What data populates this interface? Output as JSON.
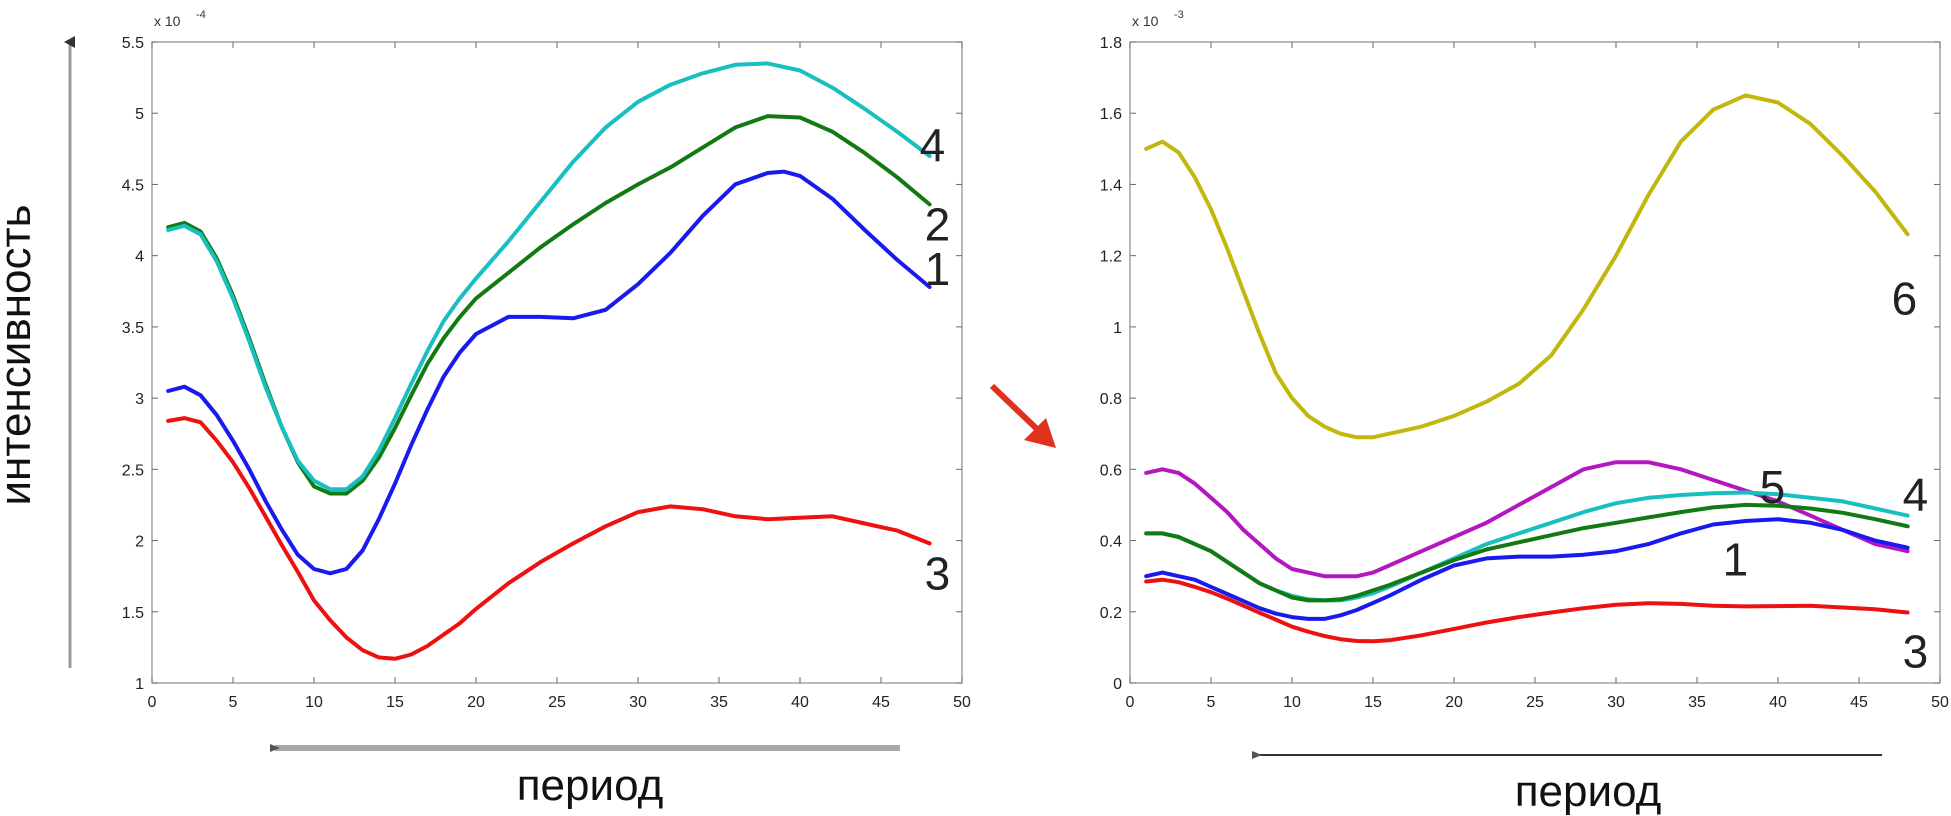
{
  "figure": {
    "ylabel": "интенсивность",
    "xlabel_left": "период",
    "xlabel_right": "период"
  },
  "chart_data": [
    {
      "type": "line",
      "xlim": [
        0,
        50
      ],
      "ylim": [
        1,
        5.5
      ],
      "exponent_label": "x 10",
      "exponent_power": "-4",
      "xticks": [
        "0",
        "5",
        "10",
        "15",
        "20",
        "25",
        "30",
        "35",
        "40",
        "45",
        "50"
      ],
      "yticks": [
        "1",
        "1.5",
        "2",
        "2.5",
        "3",
        "3.5",
        "4",
        "4.5",
        "5",
        "5.5"
      ],
      "grid": false,
      "series": [
        {
          "name": "3",
          "color": "#ee1111",
          "x": [
            1,
            2,
            3,
            4,
            5,
            6,
            7,
            8,
            9,
            10,
            11,
            12,
            13,
            14,
            15,
            16,
            17,
            18,
            19,
            20,
            22,
            24,
            26,
            28,
            30,
            32,
            34,
            36,
            38,
            40,
            42,
            44,
            46,
            48
          ],
          "y": [
            2.84,
            2.86,
            2.83,
            2.7,
            2.55,
            2.37,
            2.17,
            1.97,
            1.78,
            1.58,
            1.44,
            1.32,
            1.23,
            1.18,
            1.17,
            1.2,
            1.26,
            1.34,
            1.42,
            1.52,
            1.7,
            1.85,
            1.98,
            2.1,
            2.2,
            2.24,
            2.22,
            2.17,
            2.15,
            2.16,
            2.17,
            2.12,
            2.07,
            1.98
          ]
        },
        {
          "name": "1",
          "color": "#1a1aee",
          "x": [
            1,
            2,
            3,
            4,
            5,
            6,
            7,
            8,
            9,
            10,
            11,
            12,
            13,
            14,
            15,
            16,
            17,
            18,
            19,
            20,
            22,
            24,
            26,
            28,
            30,
            32,
            34,
            36,
            38,
            39,
            40,
            42,
            44,
            46,
            48
          ],
          "y": [
            3.05,
            3.08,
            3.02,
            2.88,
            2.7,
            2.5,
            2.28,
            2.08,
            1.9,
            1.8,
            1.77,
            1.8,
            1.93,
            2.15,
            2.4,
            2.67,
            2.92,
            3.15,
            3.32,
            3.45,
            3.57,
            3.57,
            3.56,
            3.62,
            3.8,
            4.02,
            4.28,
            4.5,
            4.58,
            4.59,
            4.56,
            4.4,
            4.18,
            3.97,
            3.78
          ]
        },
        {
          "name": "2",
          "color": "#137a13",
          "x": [
            1,
            2,
            3,
            4,
            5,
            6,
            7,
            8,
            9,
            10,
            11,
            12,
            13,
            14,
            15,
            16,
            17,
            18,
            19,
            20,
            22,
            24,
            26,
            28,
            30,
            32,
            34,
            36,
            38,
            40,
            42,
            44,
            46,
            48
          ],
          "y": [
            4.2,
            4.23,
            4.17,
            3.98,
            3.72,
            3.42,
            3.1,
            2.8,
            2.55,
            2.38,
            2.33,
            2.33,
            2.42,
            2.58,
            2.79,
            3.02,
            3.24,
            3.42,
            3.57,
            3.7,
            3.88,
            4.06,
            4.22,
            4.37,
            4.5,
            4.62,
            4.76,
            4.9,
            4.98,
            4.97,
            4.87,
            4.72,
            4.55,
            4.36
          ]
        },
        {
          "name": "4",
          "color": "#19bfbf",
          "x": [
            1,
            2,
            3,
            4,
            5,
            6,
            7,
            8,
            9,
            10,
            11,
            12,
            13,
            14,
            15,
            16,
            17,
            18,
            19,
            20,
            22,
            24,
            26,
            28,
            30,
            32,
            34,
            36,
            38,
            40,
            42,
            44,
            46,
            48
          ],
          "y": [
            4.18,
            4.21,
            4.15,
            3.96,
            3.7,
            3.4,
            3.08,
            2.8,
            2.56,
            2.42,
            2.36,
            2.36,
            2.45,
            2.63,
            2.86,
            3.1,
            3.33,
            3.54,
            3.7,
            3.84,
            4.1,
            4.38,
            4.66,
            4.9,
            5.08,
            5.2,
            5.28,
            5.34,
            5.35,
            5.3,
            5.18,
            5.03,
            4.87,
            4.7
          ]
        }
      ],
      "annotations": [
        {
          "text": "4",
          "series": "4"
        },
        {
          "text": "2",
          "series": "2"
        },
        {
          "text": "1",
          "series": "1"
        },
        {
          "text": "3",
          "series": "3"
        }
      ]
    },
    {
      "type": "line",
      "xlim": [
        0,
        50
      ],
      "ylim": [
        0,
        1.8
      ],
      "exponent_label": "x 10",
      "exponent_power": "-3",
      "xticks": [
        "0",
        "5",
        "10",
        "15",
        "20",
        "25",
        "30",
        "35",
        "40",
        "45",
        "50"
      ],
      "yticks": [
        "0",
        "0.2",
        "0.4",
        "0.6",
        "0.8",
        "1",
        "1.2",
        "1.4",
        "1.6",
        "1.8"
      ],
      "grid": false,
      "series": [
        {
          "name": "6",
          "color": "#c2b70e",
          "x": [
            1,
            2,
            3,
            4,
            5,
            6,
            7,
            8,
            9,
            10,
            11,
            12,
            13,
            14,
            15,
            16,
            17,
            18,
            20,
            22,
            24,
            26,
            28,
            30,
            32,
            34,
            36,
            38,
            40,
            42,
            44,
            46,
            48
          ],
          "y": [
            1.5,
            1.52,
            1.49,
            1.42,
            1.33,
            1.22,
            1.1,
            0.98,
            0.87,
            0.8,
            0.75,
            0.72,
            0.7,
            0.69,
            0.69,
            0.7,
            0.71,
            0.72,
            0.75,
            0.79,
            0.84,
            0.92,
            1.05,
            1.2,
            1.37,
            1.52,
            1.61,
            1.65,
            1.63,
            1.57,
            1.48,
            1.38,
            1.26
          ]
        },
        {
          "name": "5",
          "color": "#b318c0",
          "x": [
            1,
            2,
            3,
            4,
            5,
            6,
            7,
            8,
            9,
            10,
            11,
            12,
            13,
            14,
            15,
            16,
            18,
            20,
            22,
            24,
            26,
            28,
            30,
            32,
            34,
            36,
            38,
            40,
            42,
            44,
            46,
            48
          ],
          "y": [
            0.59,
            0.6,
            0.59,
            0.56,
            0.52,
            0.48,
            0.43,
            0.39,
            0.35,
            0.32,
            0.31,
            0.3,
            0.3,
            0.3,
            0.31,
            0.33,
            0.37,
            0.41,
            0.45,
            0.5,
            0.55,
            0.6,
            0.62,
            0.62,
            0.6,
            0.57,
            0.54,
            0.51,
            0.47,
            0.43,
            0.39,
            0.37
          ]
        },
        {
          "name": "4",
          "color": "#19bfbf",
          "x": [
            1,
            2,
            3,
            4,
            5,
            6,
            7,
            8,
            9,
            10,
            11,
            12,
            13,
            14,
            15,
            16,
            18,
            20,
            22,
            24,
            26,
            28,
            30,
            32,
            34,
            36,
            38,
            40,
            42,
            44,
            46,
            48
          ],
          "y": [
            0.42,
            0.42,
            0.41,
            0.39,
            0.37,
            0.34,
            0.31,
            0.28,
            0.26,
            0.245,
            0.235,
            0.232,
            0.232,
            0.24,
            0.252,
            0.27,
            0.31,
            0.35,
            0.39,
            0.42,
            0.45,
            0.48,
            0.505,
            0.52,
            0.528,
            0.533,
            0.535,
            0.53,
            0.52,
            0.51,
            0.49,
            0.47
          ]
        },
        {
          "name": "2",
          "color": "#137a13",
          "x": [
            1,
            2,
            3,
            4,
            5,
            6,
            7,
            8,
            9,
            10,
            11,
            12,
            13,
            14,
            15,
            16,
            18,
            20,
            22,
            24,
            26,
            28,
            30,
            32,
            34,
            36,
            38,
            40,
            42,
            44,
            46,
            48
          ],
          "y": [
            0.42,
            0.42,
            0.41,
            0.39,
            0.37,
            0.34,
            0.31,
            0.28,
            0.26,
            0.24,
            0.232,
            0.232,
            0.235,
            0.245,
            0.26,
            0.275,
            0.31,
            0.345,
            0.375,
            0.395,
            0.415,
            0.435,
            0.45,
            0.465,
            0.48,
            0.493,
            0.5,
            0.498,
            0.49,
            0.478,
            0.46,
            0.44
          ]
        },
        {
          "name": "1",
          "color": "#1a1aee",
          "x": [
            1,
            2,
            3,
            4,
            5,
            6,
            7,
            8,
            9,
            10,
            11,
            12,
            13,
            14,
            15,
            16,
            18,
            20,
            22,
            24,
            26,
            28,
            30,
            32,
            34,
            36,
            38,
            40,
            42,
            44,
            46,
            48
          ],
          "y": [
            0.3,
            0.31,
            0.3,
            0.29,
            0.27,
            0.25,
            0.23,
            0.21,
            0.195,
            0.185,
            0.18,
            0.18,
            0.19,
            0.205,
            0.225,
            0.245,
            0.29,
            0.33,
            0.35,
            0.355,
            0.355,
            0.36,
            0.37,
            0.39,
            0.42,
            0.445,
            0.455,
            0.46,
            0.45,
            0.43,
            0.4,
            0.38
          ]
        },
        {
          "name": "3",
          "color": "#ee1111",
          "x": [
            1,
            2,
            3,
            4,
            5,
            6,
            7,
            8,
            9,
            10,
            11,
            12,
            13,
            14,
            15,
            16,
            18,
            20,
            22,
            24,
            26,
            28,
            30,
            32,
            34,
            36,
            38,
            40,
            42,
            44,
            46,
            48
          ],
          "y": [
            0.285,
            0.29,
            0.283,
            0.27,
            0.255,
            0.237,
            0.217,
            0.197,
            0.178,
            0.158,
            0.144,
            0.132,
            0.123,
            0.118,
            0.117,
            0.12,
            0.134,
            0.152,
            0.17,
            0.185,
            0.198,
            0.21,
            0.22,
            0.224,
            0.222,
            0.217,
            0.215,
            0.216,
            0.217,
            0.212,
            0.207,
            0.198
          ]
        }
      ],
      "annotations": [
        {
          "text": "6",
          "series": "6"
        },
        {
          "text": "5",
          "series": "5"
        },
        {
          "text": "4",
          "series": "4"
        },
        {
          "text": "1",
          "series": "1"
        },
        {
          "text": "3",
          "series": "3"
        }
      ]
    }
  ]
}
